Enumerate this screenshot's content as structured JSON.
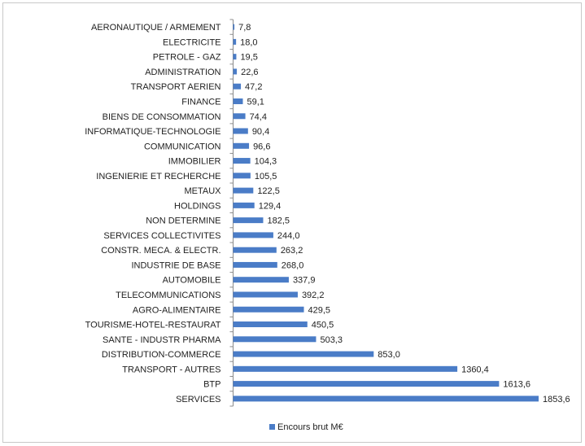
{
  "chart_data": {
    "type": "bar",
    "orientation": "horizontal",
    "categories": [
      "AERONAUTIQUE / ARMEMENT",
      "ELECTRICITE",
      "PETROLE - GAZ",
      "ADMINISTRATION",
      "TRANSPORT AERIEN",
      "FINANCE",
      "BIENS DE CONSOMMATION",
      "INFORMATIQUE-TECHNOLOGIE",
      "COMMUNICATION",
      "IMMOBILIER",
      "INGENIERIE ET RECHERCHE",
      "METAUX",
      "HOLDINGS",
      "NON DETERMINE",
      "SERVICES COLLECTIVITES",
      "CONSTR. MECA. & ELECTR.",
      "INDUSTRIE DE BASE",
      "AUTOMOBILE",
      "TELECOMMUNICATIONS",
      "AGRO-ALIMENTAIRE",
      "TOURISME-HOTEL-RESTAURAT",
      "SANTE - INDUSTR PHARMA",
      "DISTRIBUTION-COMMERCE",
      "TRANSPORT - AUTRES",
      "BTP",
      "SERVICES"
    ],
    "series": [
      {
        "name": "Encours brut M€",
        "values": [
          7.8,
          18.0,
          19.5,
          22.6,
          47.2,
          59.1,
          74.4,
          90.4,
          96.6,
          104.3,
          105.5,
          122.5,
          129.4,
          182.5,
          244.0,
          263.2,
          268.0,
          337.9,
          392.2,
          429.5,
          450.5,
          503.3,
          853.0,
          1360.4,
          1613.6,
          1853.6
        ],
        "labels": [
          "7,8",
          "18,0",
          "19,5",
          "22,6",
          "47,2",
          "59,1",
          "74,4",
          "90,4",
          "96,6",
          "104,3",
          "105,5",
          "122,5",
          "129,4",
          "182,5",
          "244,0",
          "263,2",
          "268,0",
          "337,9",
          "392,2",
          "429,5",
          "450,5",
          "503,3",
          "853,0",
          "1360,4",
          "1613,6",
          "1853,6"
        ]
      }
    ],
    "legend_position": "bottom",
    "grid": false,
    "colors": {
      "bar": "#4a7cc7",
      "axis": "#8c8c8c",
      "text": "#222222"
    }
  }
}
